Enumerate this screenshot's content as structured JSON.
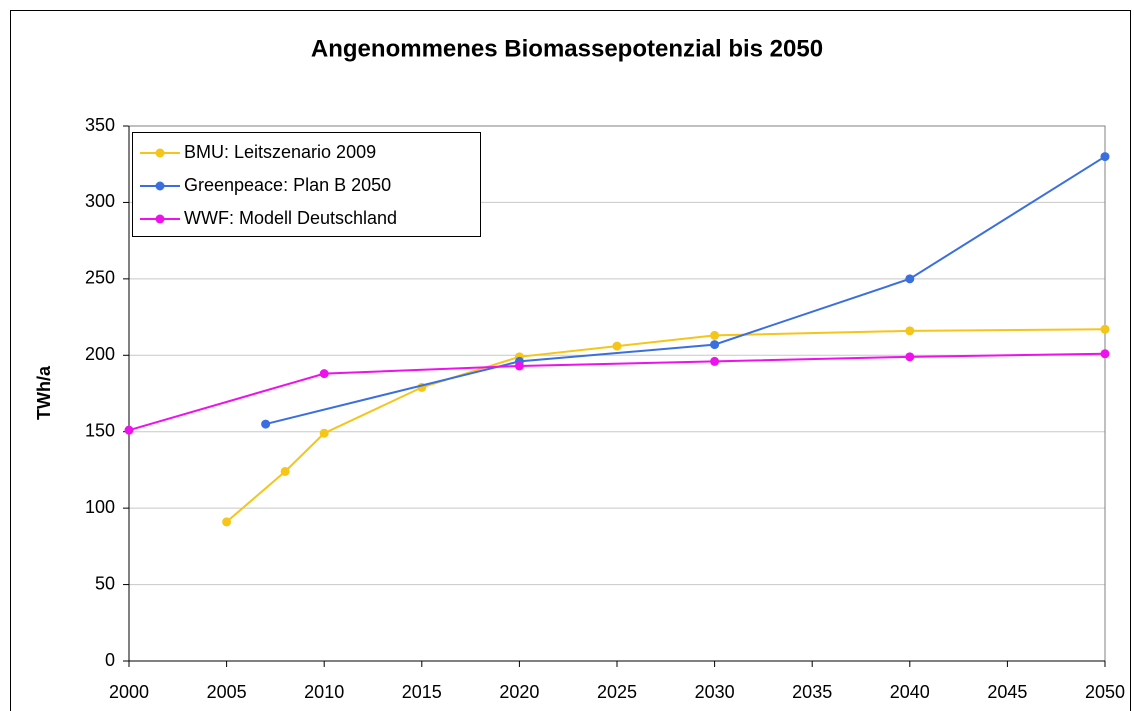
{
  "chart_data": {
    "type": "line",
    "title": "Angenommenes Biomassepotenzial bis 2050",
    "y_label": "TWh/a",
    "xlim": [
      2000,
      2050
    ],
    "xticks": [
      2000,
      2005,
      2010,
      2015,
      2020,
      2025,
      2030,
      2035,
      2040,
      2045,
      2050
    ],
    "ylim": [
      0,
      350
    ],
    "yticks": [
      0,
      50,
      100,
      150,
      200,
      250,
      300,
      350
    ],
    "grid": true,
    "legend": "upper left",
    "series": [
      {
        "name": "BMU: Leitszenario 2009",
        "color": "#f5c518",
        "x": [
          2005,
          2008,
          2010,
          2015,
          2020,
          2025,
          2030,
          2040,
          2050
        ],
        "values": [
          91,
          124,
          149,
          179,
          199,
          206,
          213,
          216,
          217
        ]
      },
      {
        "name": "Greenpeace: Plan B 2050",
        "color": "#3b6fe0",
        "x": [
          2007,
          2020,
          2030,
          2040,
          2050
        ],
        "values": [
          155,
          196,
          207,
          250,
          330
        ]
      },
      {
        "name": "WWF: Modell Deutschland",
        "color": "#ee11ee",
        "x": [
          2000,
          2010,
          2020,
          2030,
          2040,
          2050
        ],
        "values": [
          151,
          188,
          193,
          196,
          199,
          201
        ]
      }
    ]
  }
}
